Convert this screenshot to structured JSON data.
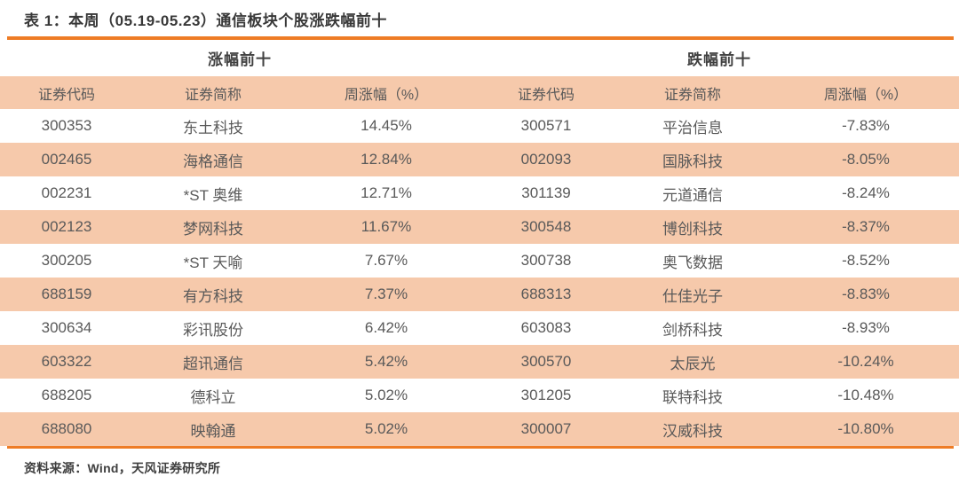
{
  "page": {
    "title": "表 1：本周（05.19-05.23）通信板块个股涨跌幅前十",
    "source": "资料来源：Wind，天风证券研究所"
  },
  "table": {
    "groups": [
      {
        "label": "涨幅前十"
      },
      {
        "label": "跌幅前十"
      }
    ],
    "column_headers": [
      "证券代码",
      "证券简称",
      "周涨幅（%）",
      "证券代码",
      "证券简称",
      "周涨幅（%）"
    ],
    "rows": [
      [
        "300353",
        "东土科技",
        "14.45%",
        "300571",
        "平治信息",
        "-7.83%"
      ],
      [
        "002465",
        "海格通信",
        "12.84%",
        "002093",
        "国脉科技",
        "-8.05%"
      ],
      [
        "002231",
        "*ST 奥维",
        "12.71%",
        "301139",
        "元道通信",
        "-8.24%"
      ],
      [
        "002123",
        "梦网科技",
        "11.67%",
        "300548",
        "博创科技",
        "-8.37%"
      ],
      [
        "300205",
        "*ST 天喻",
        "7.67%",
        "300738",
        "奥飞数据",
        "-8.52%"
      ],
      [
        "688159",
        "有方科技",
        "7.37%",
        "688313",
        "仕佳光子",
        "-8.83%"
      ],
      [
        "300634",
        "彩讯股份",
        "6.42%",
        "603083",
        "剑桥科技",
        "-8.93%"
      ],
      [
        "603322",
        "超讯通信",
        "5.42%",
        "300570",
        "太辰光",
        "-10.24%"
      ],
      [
        "688205",
        "德科立",
        "5.02%",
        "301205",
        "联特科技",
        "-10.48%"
      ],
      [
        "688080",
        "映翰通",
        "5.02%",
        "300007",
        "汉威科技",
        "-10.80%"
      ]
    ],
    "cell_names": [
      "gainer-code-cell",
      "gainer-name-cell",
      "gainer-pct-cell",
      "loser-code-cell",
      "loser-name-cell",
      "loser-pct-cell"
    ]
  },
  "colors": {
    "accent_orange": "#EE7C26",
    "band_peach": "#F6C9AB",
    "text_gray": "#595959",
    "title_dark": "#383838"
  }
}
